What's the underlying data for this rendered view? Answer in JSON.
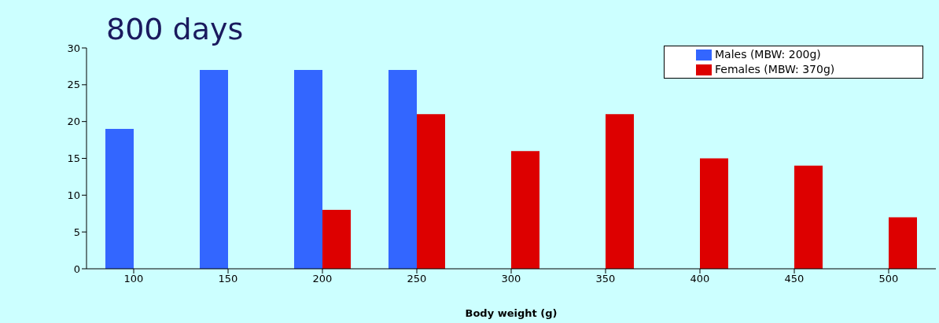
{
  "chart_data": {
    "type": "bar",
    "title": "800 days",
    "xlabel": "Body weight (g)",
    "categories": [
      "100",
      "150",
      "200",
      "250",
      "300",
      "350",
      "400",
      "450",
      "500"
    ],
    "series": [
      {
        "name": "Males (MBW: 200g)",
        "color": "#3366ff",
        "values": [
          19,
          27,
          27,
          27,
          null,
          null,
          null,
          null,
          null
        ]
      },
      {
        "name": "Females (MBW: 370g)",
        "color": "#dd0000",
        "values": [
          null,
          null,
          8,
          21,
          16,
          21,
          15,
          14,
          7
        ]
      }
    ],
    "ylim": [
      0,
      30
    ],
    "yticks": [
      0,
      5,
      10,
      15,
      20,
      25,
      30
    ],
    "legend": "top right"
  }
}
